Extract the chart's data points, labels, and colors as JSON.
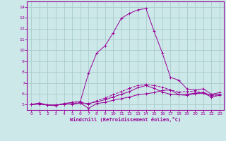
{
  "bg_color": "#cce8e8",
  "grid_color": "#aacccc",
  "line_color": "#990099",
  "xlabel": "Windchill (Refroidissement éolien,°C)",
  "xlim": [
    -0.5,
    23.5
  ],
  "ylim": [
    4.5,
    14.5
  ],
  "yticks": [
    5,
    6,
    7,
    8,
    9,
    10,
    11,
    12,
    13,
    14
  ],
  "xticks": [
    0,
    1,
    2,
    3,
    4,
    5,
    6,
    7,
    8,
    9,
    10,
    11,
    12,
    13,
    14,
    15,
    16,
    17,
    18,
    19,
    20,
    21,
    22,
    23
  ],
  "line1_x": [
    0,
    1,
    2,
    3,
    4,
    5,
    6,
    7,
    8,
    9,
    10,
    11,
    12,
    13,
    14,
    15,
    16,
    17,
    18,
    19,
    20,
    21,
    22,
    23
  ],
  "line1_y": [
    5.0,
    5.1,
    4.95,
    4.95,
    5.05,
    5.05,
    5.15,
    4.65,
    5.1,
    5.2,
    5.4,
    5.55,
    5.7,
    5.9,
    6.0,
    6.1,
    6.3,
    6.35,
    5.9,
    5.85,
    6.0,
    6.05,
    5.7,
    5.85
  ],
  "line2_x": [
    0,
    1,
    2,
    3,
    4,
    5,
    6,
    7,
    8,
    9,
    10,
    11,
    12,
    13,
    14,
    15,
    16,
    17,
    18,
    19,
    20,
    21,
    22,
    23
  ],
  "line2_y": [
    5.0,
    5.05,
    4.95,
    4.95,
    5.05,
    5.05,
    5.15,
    5.1,
    5.25,
    5.45,
    5.7,
    5.95,
    6.2,
    6.55,
    6.75,
    6.5,
    6.15,
    5.95,
    5.9,
    5.95,
    6.05,
    6.1,
    5.85,
    5.95
  ],
  "line3_x": [
    0,
    1,
    2,
    3,
    4,
    5,
    6,
    7,
    8,
    9,
    10,
    11,
    12,
    13,
    14,
    15,
    16,
    17,
    18,
    19,
    20,
    21,
    22,
    23
  ],
  "line3_y": [
    5.0,
    5.15,
    4.95,
    4.9,
    5.1,
    5.2,
    5.3,
    7.9,
    9.75,
    10.4,
    11.6,
    12.95,
    13.4,
    13.72,
    13.85,
    11.75,
    9.75,
    7.5,
    7.25,
    6.45,
    6.35,
    6.45,
    5.95,
    6.1
  ],
  "line4_x": [
    0,
    1,
    2,
    3,
    4,
    5,
    6,
    7,
    8,
    9,
    10,
    11,
    12,
    13,
    14,
    15,
    16,
    17,
    18,
    19,
    20,
    21,
    22,
    23
  ],
  "line4_y": [
    5.0,
    5.08,
    4.95,
    4.95,
    5.05,
    5.1,
    5.2,
    5.05,
    5.35,
    5.6,
    5.9,
    6.2,
    6.5,
    6.75,
    6.85,
    6.75,
    6.6,
    6.35,
    6.15,
    6.2,
    6.2,
    6.1,
    5.8,
    5.9
  ]
}
